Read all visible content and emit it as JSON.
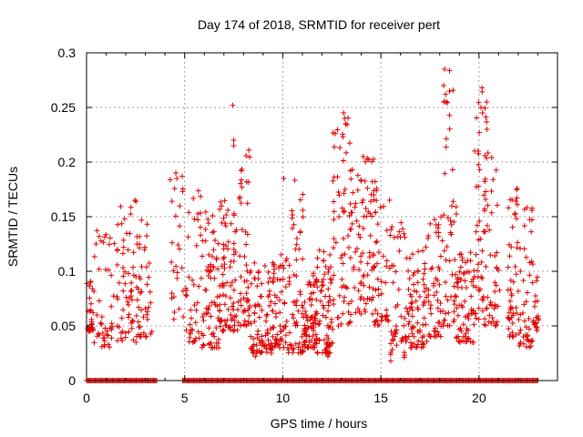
{
  "chart_data": {
    "type": "scatter",
    "title": "Day 174 of 2018, SRMTID for receiver pert",
    "xlabel": "GPS time / hours",
    "ylabel": "SRMTID / TECUs",
    "xlim": [
      0,
      24
    ],
    "ylim": [
      0,
      0.3
    ],
    "x_ticks": [
      "0",
      "5",
      "10",
      "15",
      "20"
    ],
    "y_ticks": [
      "0",
      "0.05",
      "0.1",
      "0.15",
      "0.2",
      "0.25",
      "0.3"
    ],
    "grid": true,
    "marker": "plus",
    "color": "#e00000",
    "series": [
      {
        "name": "SRMTID",
        "clusters": [
          [
            0.0,
            0.35,
            0.045,
            0.1,
            28
          ],
          [
            0.35,
            1.45,
            0.03,
            0.155,
            45
          ],
          [
            1.55,
            2.55,
            0.035,
            0.165,
            60
          ],
          [
            2.55,
            3.35,
            0.04,
            0.15,
            45
          ],
          [
            4.25,
            4.95,
            0.055,
            0.19,
            26
          ],
          [
            5.05,
            5.85,
            0.035,
            0.18,
            40
          ],
          [
            5.85,
            6.75,
            0.03,
            0.155,
            70
          ],
          [
            6.75,
            7.75,
            0.045,
            0.17,
            85
          ],
          [
            7.75,
            8.35,
            0.05,
            0.215,
            50
          ],
          [
            8.35,
            9.45,
            0.025,
            0.11,
            80
          ],
          [
            9.45,
            10.25,
            0.03,
            0.12,
            60
          ],
          [
            10.25,
            11.05,
            0.025,
            0.185,
            60
          ],
          [
            11.05,
            11.75,
            0.03,
            0.1,
            80
          ],
          [
            11.75,
            12.55,
            0.025,
            0.12,
            70
          ],
          [
            12.55,
            13.45,
            0.05,
            0.245,
            60
          ],
          [
            13.45,
            14.65,
            0.06,
            0.205,
            85
          ],
          [
            14.65,
            15.45,
            0.05,
            0.185,
            45
          ],
          [
            15.45,
            16.25,
            0.02,
            0.15,
            45
          ],
          [
            16.25,
            17.35,
            0.03,
            0.125,
            80
          ],
          [
            17.35,
            18.15,
            0.04,
            0.15,
            50
          ],
          [
            18.15,
            18.85,
            0.05,
            0.285,
            50
          ],
          [
            18.85,
            19.75,
            0.035,
            0.12,
            70
          ],
          [
            19.75,
            20.45,
            0.05,
            0.265,
            60
          ],
          [
            20.45,
            21.05,
            0.05,
            0.21,
            35
          ],
          [
            21.45,
            22.05,
            0.04,
            0.18,
            50
          ],
          [
            22.05,
            22.75,
            0.03,
            0.16,
            45
          ],
          [
            22.75,
            23.05,
            0.045,
            0.1,
            20
          ]
        ],
        "outliers": [
          [
            7.45,
            0.252
          ],
          [
            7.5,
            0.22
          ],
          [
            7.5,
            0.215
          ],
          [
            13.1,
            0.245
          ],
          [
            13.15,
            0.24
          ],
          [
            13.2,
            0.235
          ],
          [
            14.1,
            0.205
          ],
          [
            18.25,
            0.285
          ],
          [
            18.2,
            0.27
          ],
          [
            18.3,
            0.262
          ],
          [
            18.22,
            0.255
          ],
          [
            20.15,
            0.268
          ],
          [
            20.1,
            0.25
          ],
          [
            20.18,
            0.245
          ],
          [
            20.4,
            0.23
          ],
          [
            4.55,
            0.19
          ],
          [
            4.6,
            0.185
          ],
          [
            10.05,
            0.185
          ],
          [
            19.95,
            0.21
          ],
          [
            15.5,
            0.018
          ],
          [
            12.3,
            0.022
          ],
          [
            8.6,
            0.022
          ]
        ],
        "zero_ranges": [
          [
            0.0,
            3.6
          ],
          [
            4.9,
            23.0
          ]
        ]
      }
    ]
  }
}
